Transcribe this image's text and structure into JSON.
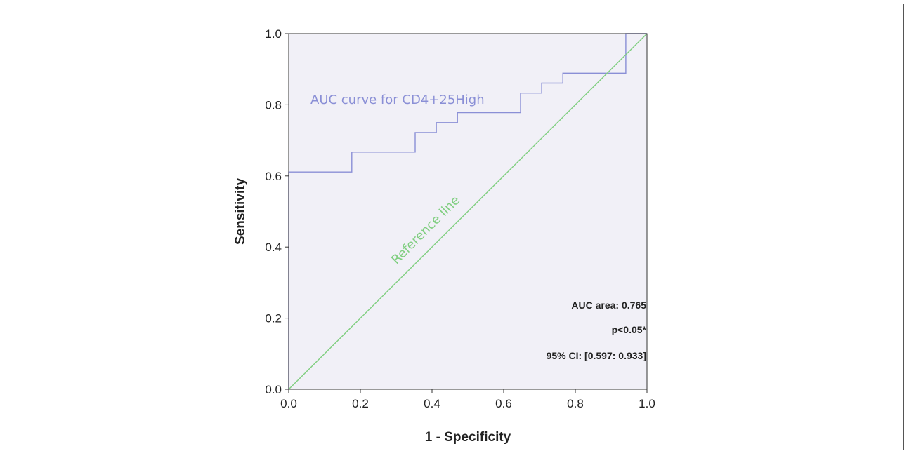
{
  "chart_data": {
    "type": "line",
    "xlabel": "1 - Specificity",
    "ylabel": "Sensitivity",
    "xlim": [
      0.0,
      1.0
    ],
    "ylim": [
      0.0,
      1.0
    ],
    "x_ticks": [
      "0.0",
      "0.2",
      "0.4",
      "0.6",
      "0.8",
      "1.0"
    ],
    "y_ticks": [
      "0.0",
      "0.2",
      "0.4",
      "0.6",
      "0.8",
      "1.0"
    ],
    "grid": false,
    "series": [
      {
        "name": "AUC curve for CD4+25High",
        "color": "#8a8fd6",
        "step": true,
        "x": [
          0.0,
          0.0,
          0.176,
          0.176,
          0.353,
          0.353,
          0.412,
          0.412,
          0.471,
          0.471,
          0.647,
          0.647,
          0.706,
          0.706,
          0.765,
          0.765,
          0.941,
          0.941,
          1.0
        ],
        "y": [
          0.0,
          0.611,
          0.611,
          0.667,
          0.667,
          0.722,
          0.722,
          0.75,
          0.75,
          0.778,
          0.778,
          0.833,
          0.833,
          0.861,
          0.861,
          0.889,
          0.889,
          1.0,
          1.0
        ]
      },
      {
        "name": "Reference line",
        "color": "#7fce7f",
        "x": [
          0.0,
          1.0
        ],
        "y": [
          0.0,
          1.0
        ]
      }
    ],
    "annotations": [
      "AUC area: 0.765",
      "p<0.05*",
      "95% CI: [0.597: 0.933]"
    ],
    "plot_background": "#f1f0f7"
  }
}
